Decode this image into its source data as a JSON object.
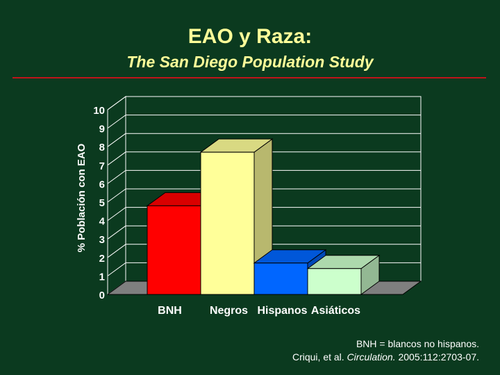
{
  "slide": {
    "title": "EAO y Raza:",
    "subtitle": "The San Diego Population Study",
    "note_line1": "BNH = blancos no hispanos.",
    "citation_pre": "Criqui, et al. ",
    "citation_journal": "Circulation.",
    "citation_post": " 2005:112:2703-07."
  },
  "colors": {
    "background": "#0b3a1f",
    "title": "#ffff99",
    "rule": "#c0141a"
  },
  "chart_data": {
    "type": "bar",
    "categories": [
      "BNH",
      "Negros",
      "Hispanos",
      "Asiáticos"
    ],
    "values": [
      4.8,
      7.7,
      1.7,
      1.4
    ],
    "colors": [
      "#ff0000",
      "#ffff99",
      "#0066ff",
      "#ccffcc"
    ],
    "title": "",
    "xlabel": "",
    "ylabel": "% Población con EAO",
    "ylim": [
      0,
      10
    ],
    "yticks": [
      0,
      1,
      2,
      3,
      4,
      5,
      6,
      7,
      8,
      9,
      10
    ],
    "grid": true,
    "style": "3d"
  }
}
